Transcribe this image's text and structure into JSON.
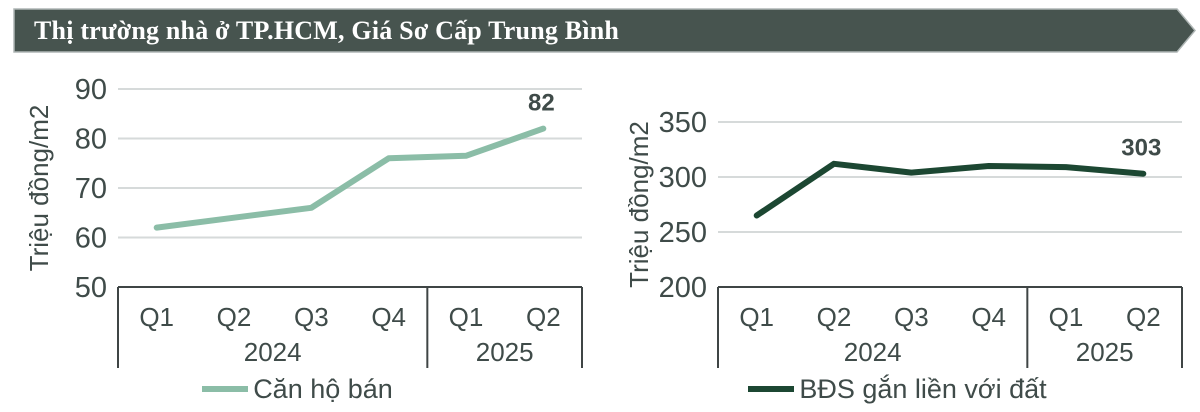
{
  "header": {
    "title": "Thị trường nhà ở TP.HCM, Giá Sơ Cấp Trung Bình"
  },
  "colors": {
    "banner_bg": "#47544F",
    "banner_border": "#AFB6B5",
    "banner_text": "#FFFFFF",
    "apartment_line": "#8BBDA7",
    "landed_line": "#1C4732",
    "text_dark": "#3F4B49",
    "gridline": "#D6DADA",
    "axis_box_border": "#3F4545"
  },
  "chart_data": [
    {
      "type": "line",
      "name": "apartment-primary-price",
      "legend": "Căn hộ bán",
      "ylabel": "Triệu đồng/m2",
      "ylim": [
        50,
        90
      ],
      "yticks": [
        90,
        80,
        70,
        60,
        50
      ],
      "gridline_values": [
        90,
        80,
        70,
        60
      ],
      "grid": "horizontal",
      "legend_position": "bottom",
      "categories": [
        "Q1",
        "Q2",
        "Q3",
        "Q4",
        "Q1",
        "Q2"
      ],
      "year_groups": [
        {
          "label": "2024",
          "span": 4
        },
        {
          "label": "2025",
          "span": 2
        }
      ],
      "values": [
        62,
        64,
        66,
        76,
        76.5,
        82
      ],
      "end_label": "82",
      "line_color": "#8BBDA7"
    },
    {
      "type": "line",
      "name": "landed-property-primary-price",
      "legend": "BĐS gắn liền với đất",
      "ylabel": "Triệu đồng/m2",
      "ylim": [
        200,
        350
      ],
      "yticks": [
        350,
        300,
        250,
        200
      ],
      "gridline_values": [
        350,
        300,
        250
      ],
      "grid": "horizontal",
      "legend_position": "bottom",
      "categories": [
        "Q1",
        "Q2",
        "Q3",
        "Q4",
        "Q1",
        "Q2"
      ],
      "year_groups": [
        {
          "label": "2024",
          "span": 4
        },
        {
          "label": "2025",
          "span": 2
        }
      ],
      "values": [
        265,
        312,
        304,
        310,
        309,
        303
      ],
      "end_label": "303",
      "line_color": "#1C4732"
    }
  ]
}
